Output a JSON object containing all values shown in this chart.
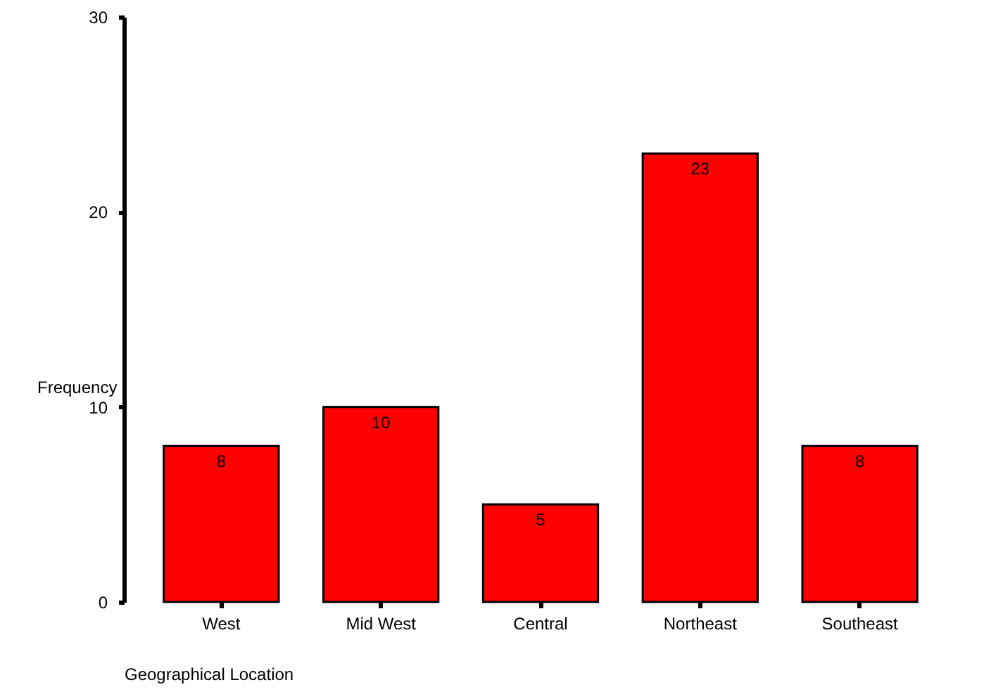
{
  "chart_data": {
    "type": "bar",
    "xlabel": "Geographical Location",
    "ylabel": "Frequency",
    "categories": [
      "West",
      "Mid West",
      "Central",
      "Northeast",
      "Southeast"
    ],
    "values": [
      8,
      10,
      5,
      23,
      8
    ],
    "color": "#ff0000",
    "ylim": [
      0,
      30
    ],
    "yticks": [
      0,
      10,
      20,
      30
    ],
    "grid": false,
    "data_labels": true
  }
}
